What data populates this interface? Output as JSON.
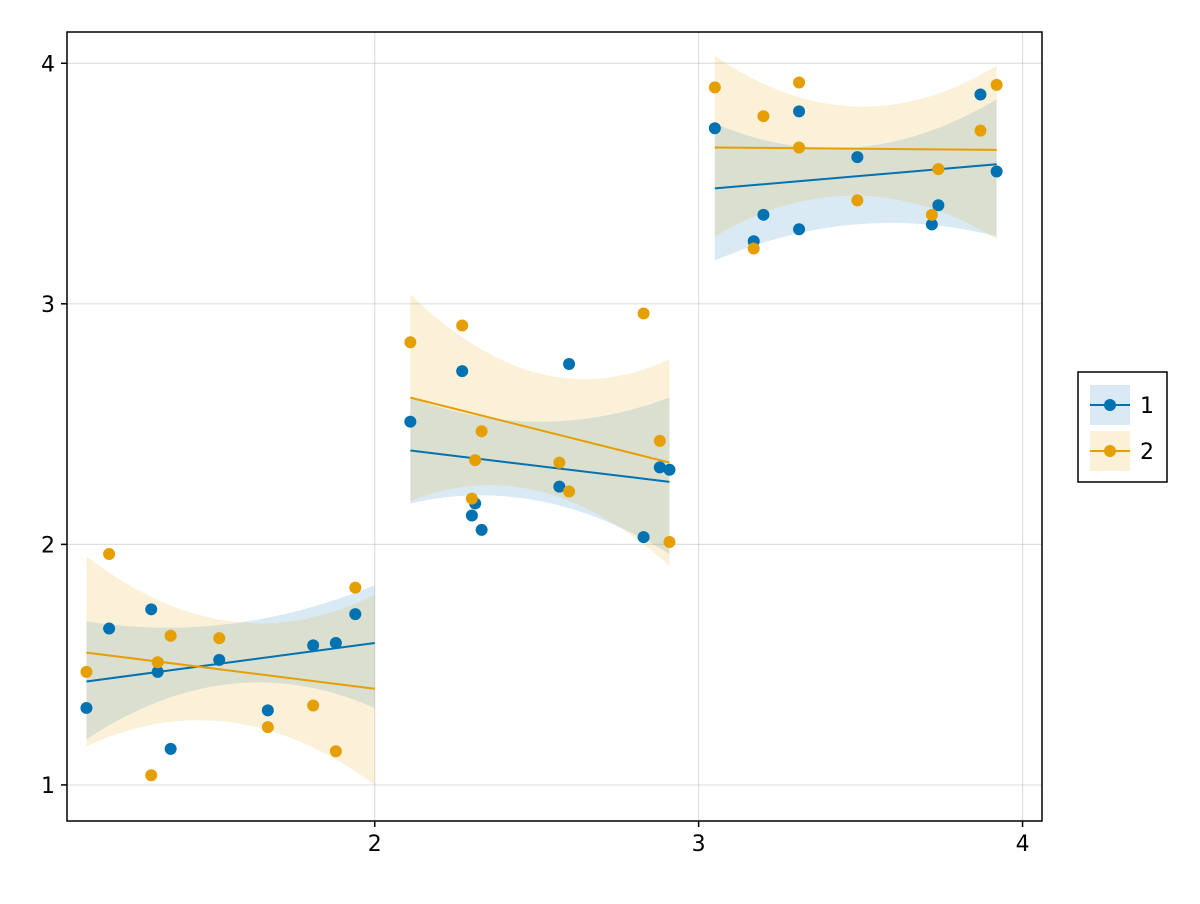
{
  "chart_data": {
    "type": "scatter",
    "title": "",
    "xlabel": "",
    "ylabel": "",
    "xlim": [
      1.05,
      4.06
    ],
    "ylim": [
      0.85,
      4.13
    ],
    "xticks": [
      2,
      3,
      4
    ],
    "yticks": [
      1,
      2,
      3,
      4
    ],
    "grid": true,
    "legend_position": "right",
    "series": [
      {
        "name": "1",
        "color": "#0072B2",
        "points": [
          [
            1.11,
            1.32
          ],
          [
            1.18,
            1.65
          ],
          [
            1.31,
            1.73
          ],
          [
            1.33,
            1.47
          ],
          [
            1.37,
            1.15
          ],
          [
            1.52,
            1.52
          ],
          [
            1.67,
            1.31
          ],
          [
            1.81,
            1.58
          ],
          [
            1.88,
            1.59
          ],
          [
            1.94,
            1.71
          ],
          [
            2.11,
            2.51
          ],
          [
            2.27,
            2.72
          ],
          [
            2.3,
            2.12
          ],
          [
            2.31,
            2.17
          ],
          [
            2.33,
            2.06
          ],
          [
            2.57,
            2.24
          ],
          [
            2.6,
            2.75
          ],
          [
            2.83,
            2.03
          ],
          [
            2.88,
            2.32
          ],
          [
            2.91,
            2.31
          ],
          [
            3.05,
            3.73
          ],
          [
            3.17,
            3.26
          ],
          [
            3.2,
            3.37
          ],
          [
            3.31,
            3.8
          ],
          [
            3.31,
            3.31
          ],
          [
            3.49,
            3.61
          ],
          [
            3.72,
            3.33
          ],
          [
            3.74,
            3.41
          ],
          [
            3.87,
            3.87
          ],
          [
            3.92,
            3.55
          ]
        ],
        "fits": [
          {
            "x": [
              1.11,
              2.0
            ],
            "y": [
              1.43,
              1.59
            ],
            "band_lower": [
              1.19,
              1.42,
              1.32
            ],
            "band_upper": [
              1.68,
              1.67,
              1.83
            ]
          },
          {
            "x": [
              2.11,
              2.91
            ],
            "y": [
              2.39,
              2.26
            ],
            "band_lower": [
              2.17,
              2.18,
              1.96
            ],
            "band_upper": [
              2.61,
              2.51,
              2.61
            ]
          },
          {
            "x": [
              3.05,
              3.92
            ],
            "y": [
              3.48,
              3.58
            ],
            "band_lower": [
              3.18,
              3.33,
              3.28
            ],
            "band_upper": [
              3.75,
              3.65,
              3.85
            ]
          }
        ]
      },
      {
        "name": "2",
        "color": "#E69F00",
        "points": [
          [
            1.11,
            1.47
          ],
          [
            1.18,
            1.96
          ],
          [
            1.31,
            1.04
          ],
          [
            1.33,
            1.51
          ],
          [
            1.37,
            1.62
          ],
          [
            1.52,
            1.61
          ],
          [
            1.67,
            1.24
          ],
          [
            1.81,
            1.33
          ],
          [
            1.88,
            1.14
          ],
          [
            1.94,
            1.82
          ],
          [
            2.11,
            2.84
          ],
          [
            2.27,
            2.91
          ],
          [
            2.3,
            2.19
          ],
          [
            2.31,
            2.35
          ],
          [
            2.33,
            2.47
          ],
          [
            2.57,
            2.34
          ],
          [
            2.6,
            2.22
          ],
          [
            2.83,
            2.96
          ],
          [
            2.88,
            2.43
          ],
          [
            2.91,
            2.01
          ],
          [
            3.05,
            3.9
          ],
          [
            3.17,
            3.23
          ],
          [
            3.2,
            3.78
          ],
          [
            3.31,
            3.92
          ],
          [
            3.31,
            3.65
          ],
          [
            3.49,
            3.43
          ],
          [
            3.72,
            3.37
          ],
          [
            3.74,
            3.56
          ],
          [
            3.87,
            3.72
          ],
          [
            3.92,
            3.91
          ]
        ],
        "fits": [
          {
            "x": [
              1.11,
              2.0
            ],
            "y": [
              1.55,
              1.4
            ],
            "band_lower": [
              1.16,
              1.26,
              1.0
            ],
            "band_upper": [
              1.95,
              1.68,
              1.79
            ]
          },
          {
            "x": [
              2.11,
              2.91
            ],
            "y": [
              2.61,
              2.34
            ],
            "band_lower": [
              2.18,
              2.22,
              1.91
            ],
            "band_upper": [
              3.04,
              2.71,
              2.77
            ]
          },
          {
            "x": [
              3.05,
              3.92
            ],
            "y": [
              3.65,
              3.64
            ],
            "band_lower": [
              3.28,
              3.45,
              3.27
            ],
            "band_upper": [
              4.03,
              3.82,
              3.99
            ]
          }
        ]
      }
    ]
  }
}
